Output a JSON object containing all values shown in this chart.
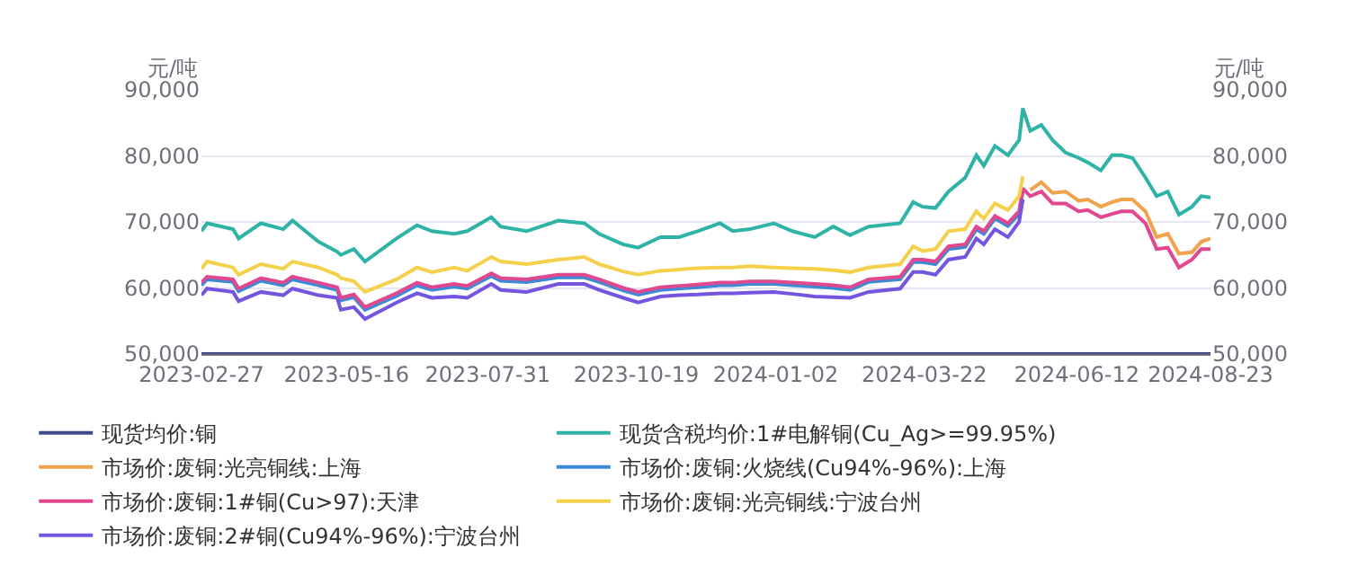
{
  "chart_data": {
    "type": "line",
    "ylabel": "元/吨",
    "y2label": "元/吨",
    "x": [
      "2023-02-27",
      "2023-03-02",
      "2023-03-16",
      "2023-03-19",
      "2023-03-31",
      "2023-04-12",
      "2023-04-17",
      "2023-05-01",
      "2023-05-11",
      "2023-05-13",
      "2023-05-20",
      "2023-05-26",
      "2023-06-12",
      "2023-06-23",
      "2023-07-01",
      "2023-07-13",
      "2023-07-20",
      "2023-08-02",
      "2023-08-07",
      "2023-08-21",
      "2023-09-07",
      "2023-09-21",
      "2023-09-29",
      "2023-10-12",
      "2023-10-20",
      "2023-11-01",
      "2023-11-11",
      "2023-11-21",
      "2023-12-03",
      "2023-12-10",
      "2023-12-19",
      "2024-01-01",
      "2024-01-11",
      "2024-01-23",
      "2024-02-02",
      "2024-02-11",
      "2024-02-21",
      "2024-03-09",
      "2024-03-16",
      "2024-03-21",
      "2024-03-28",
      "2024-04-04",
      "2024-04-13",
      "2024-04-19",
      "2024-04-23",
      "2024-04-29",
      "2024-05-06",
      "2024-05-12",
      "2024-05-14",
      "2024-05-18",
      "2024-05-24",
      "2024-05-30",
      "2024-06-06",
      "2024-06-13",
      "2024-06-18",
      "2024-06-25",
      "2024-07-01",
      "2024-07-06",
      "2024-07-12",
      "2024-07-19",
      "2024-07-25",
      "2024-07-31",
      "2024-08-06",
      "2024-08-13",
      "2024-08-18",
      "2024-08-23"
    ],
    "series": [
      {
        "name": "现货均价:铜",
        "color": "#3e4a89",
        "values": [
          50000,
          50000,
          50000,
          50000,
          50000,
          50000,
          50000,
          50000,
          50000,
          50000,
          50000,
          50000,
          50000,
          50000,
          50000,
          50000,
          50000,
          50000,
          50000,
          50000,
          50000,
          50000,
          50000,
          50000,
          50000,
          50000,
          50000,
          50000,
          50000,
          50000,
          50000,
          50000,
          50000,
          50000,
          50000,
          50000,
          50000,
          50000,
          50000,
          50000,
          50000,
          50000,
          50000,
          50000,
          50000,
          50000,
          50000,
          50000,
          50000,
          50000,
          50000,
          50000,
          50000,
          50000,
          50000,
          50000,
          50000,
          50000,
          50000,
          50000,
          50000,
          50000,
          50000,
          50000,
          50000,
          50000
        ]
      },
      {
        "name": "现货含税均价:1#电解铜(Cu_Ag>=99.95%)",
        "color": "#2fb3a6",
        "axis": "y2",
        "values": [
          68600,
          69800,
          68900,
          67500,
          69800,
          68900,
          70200,
          67000,
          65500,
          65000,
          65900,
          64000,
          67500,
          69500,
          68600,
          68200,
          68600,
          70700,
          69300,
          68600,
          70200,
          69800,
          68200,
          66600,
          66100,
          67700,
          67700,
          68600,
          69800,
          68600,
          68900,
          69800,
          68600,
          67700,
          69300,
          68000,
          69300,
          69800,
          73000,
          72300,
          72100,
          74600,
          76700,
          80100,
          78500,
          81500,
          80100,
          82400,
          87200,
          83800,
          84700,
          82400,
          80500,
          79700,
          79000,
          77800,
          80100,
          80100,
          79700,
          76700,
          73900,
          74600,
          71100,
          72300,
          73900,
          73700
        ]
      },
      {
        "name": "市场价:废铜:光亮铜线:上海",
        "color": "#f2a24a",
        "values": [
          null,
          null,
          null,
          null,
          null,
          null,
          null,
          null,
          null,
          null,
          null,
          null,
          null,
          null,
          null,
          null,
          null,
          null,
          null,
          null,
          null,
          null,
          null,
          null,
          null,
          null,
          null,
          null,
          null,
          null,
          null,
          null,
          null,
          null,
          null,
          null,
          null,
          null,
          null,
          null,
          null,
          null,
          null,
          null,
          null,
          null,
          null,
          null,
          null,
          74800,
          76000,
          74400,
          74600,
          73200,
          73400,
          72300,
          73000,
          73400,
          73400,
          71600,
          67700,
          68200,
          65200,
          65400,
          67000,
          67500
        ]
      },
      {
        "name": "市场价:废铜:火烧线(Cu94%-96%):上海",
        "color": "#3a8ad6",
        "values": [
          60400,
          61300,
          60900,
          59500,
          61100,
          60400,
          61300,
          60400,
          59700,
          58100,
          58600,
          56700,
          58800,
          60400,
          59700,
          60200,
          59900,
          61800,
          61100,
          60900,
          61600,
          61600,
          60900,
          59600,
          59000,
          59700,
          59900,
          60100,
          60400,
          60400,
          60600,
          60600,
          60400,
          60200,
          60000,
          59700,
          60900,
          61300,
          63900,
          63900,
          63600,
          65900,
          66200,
          68900,
          68200,
          70500,
          69400,
          71200,
          74700,
          null,
          null,
          null,
          null,
          null,
          null,
          null,
          null,
          null,
          null,
          null,
          null,
          null,
          null,
          null,
          null,
          null
        ]
      },
      {
        "name": "市场价:废铜:1#铜(Cu>97):天津",
        "color": "#e0498f",
        "values": [
          60800,
          61700,
          61300,
          59900,
          61500,
          60800,
          61700,
          60800,
          60100,
          58500,
          59000,
          57100,
          59200,
          60800,
          60100,
          60600,
          60300,
          62200,
          61500,
          61300,
          62000,
          62000,
          61300,
          60000,
          59400,
          60100,
          60300,
          60500,
          60800,
          60800,
          61000,
          61000,
          60800,
          60600,
          60400,
          60100,
          61300,
          61700,
          64300,
          64300,
          64000,
          66300,
          66600,
          69300,
          68600,
          70900,
          69800,
          71600,
          75100,
          73900,
          74600,
          72800,
          72800,
          71600,
          71800,
          70700,
          71200,
          71600,
          71600,
          69800,
          65900,
          66100,
          63100,
          64300,
          65900,
          65900
        ]
      },
      {
        "name": "市场价:废铜:光亮铜线:宁波台州",
        "color": "#f5d04b",
        "values": [
          62900,
          64000,
          63100,
          62000,
          63600,
          62900,
          64000,
          63100,
          62000,
          61500,
          61000,
          59400,
          61300,
          63100,
          62400,
          63100,
          62600,
          64700,
          64000,
          63600,
          64300,
          64700,
          63600,
          62500,
          62000,
          62600,
          62800,
          63000,
          63100,
          63100,
          63300,
          63100,
          63000,
          62900,
          62700,
          62400,
          63100,
          63600,
          66300,
          65600,
          65900,
          68600,
          68900,
          71600,
          70500,
          72800,
          71800,
          73900,
          76900,
          null,
          null,
          null,
          null,
          null,
          null,
          null,
          null,
          null,
          null,
          null,
          null,
          null,
          null,
          null,
          null,
          null
        ]
      },
      {
        "name": "市场价:废铜:2#铜(Cu94%-96%):宁波台州",
        "color": "#7455e0",
        "values": [
          58900,
          59900,
          59400,
          58000,
          59400,
          58900,
          59900,
          58900,
          58500,
          56700,
          57100,
          55300,
          57800,
          59200,
          58500,
          58700,
          58500,
          60600,
          59700,
          59400,
          60600,
          60600,
          59700,
          58500,
          57800,
          58700,
          58900,
          59000,
          59200,
          59200,
          59300,
          59400,
          59100,
          58700,
          58600,
          58500,
          59400,
          59900,
          62400,
          62400,
          62000,
          64300,
          64700,
          67500,
          66600,
          68900,
          67700,
          70000,
          73400,
          null,
          null,
          null,
          null,
          null,
          null,
          null,
          null,
          null,
          null,
          null,
          null,
          null,
          null,
          null,
          null,
          null
        ]
      }
    ],
    "xlim": [
      "2023-02-27",
      "2024-08-23"
    ],
    "xticks": [
      "2023-02-27",
      "2023-05-16",
      "2023-07-31",
      "2023-10-19",
      "2024-01-02",
      "2024-03-22",
      "2024-06-12",
      "2024-08-23"
    ],
    "ylim": [
      50000,
      90000
    ],
    "yticks": [
      {
        "value": 50000,
        "label": "50,000"
      },
      {
        "value": 60000,
        "label": "60,000"
      },
      {
        "value": 70000,
        "label": "70,000"
      },
      {
        "value": 80000,
        "label": "80,000"
      },
      {
        "value": 90000,
        "label": "90,000"
      }
    ],
    "y2lim": [
      50000,
      90000
    ],
    "y2ticks": [
      {
        "value": 50000,
        "label": "50,000"
      },
      {
        "value": 60000,
        "label": "60,000"
      },
      {
        "value": 70000,
        "label": "70,000"
      },
      {
        "value": 80000,
        "label": "80,000"
      },
      {
        "value": 90000,
        "label": "90,000"
      }
    ],
    "grid": "y",
    "legend": "bottom",
    "marker": "none",
    "line_style": "solid"
  }
}
